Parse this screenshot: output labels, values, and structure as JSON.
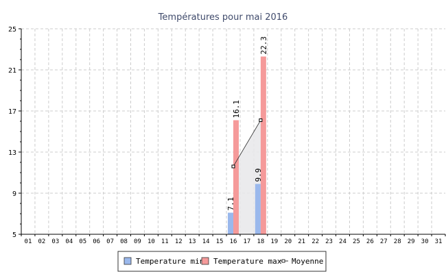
{
  "chart_data": {
    "type": "bar",
    "title": "Températures pour mai 2016",
    "categories": [
      "01",
      "02",
      "03",
      "04",
      "05",
      "06",
      "07",
      "08",
      "09",
      "10",
      "11",
      "12",
      "13",
      "14",
      "15",
      "16",
      "17",
      "18",
      "19",
      "20",
      "21",
      "22",
      "23",
      "24",
      "25",
      "26",
      "27",
      "28",
      "29",
      "30",
      "31"
    ],
    "series": [
      {
        "name": "Temperature min",
        "type": "bar",
        "points": [
          {
            "x": "16",
            "y": 7.1
          },
          {
            "x": "18",
            "y": 9.9
          }
        ]
      },
      {
        "name": "Temperature max",
        "type": "bar",
        "points": [
          {
            "x": "16",
            "y": 16.1
          },
          {
            "x": "18",
            "y": 22.3
          }
        ]
      },
      {
        "name": "Moyenne",
        "type": "line",
        "points": [
          {
            "x": "16",
            "y": 11.6
          },
          {
            "x": "18",
            "y": 16.1
          }
        ]
      }
    ],
    "data_labels": [
      {
        "x": "16",
        "text": "7.1",
        "value": 7.1
      },
      {
        "x": "16",
        "text": "16.1",
        "value": 16.1
      },
      {
        "x": "18",
        "text": "9.9",
        "value": 9.9
      },
      {
        "x": "18",
        "text": "22.3",
        "value": 22.3
      }
    ],
    "ylim": [
      5,
      25
    ],
    "yticks": [
      "5",
      "9",
      "13",
      "17",
      "21",
      "25"
    ],
    "grid": true,
    "legend_position": "bottom",
    "colors": {
      "Temperature min": "#9ab8ec",
      "Temperature max": "#f59a9a",
      "Moyenne": "#333333",
      "grid": "#cccccc",
      "area": "#e8e8ea",
      "title": "#3f4a6b"
    }
  }
}
